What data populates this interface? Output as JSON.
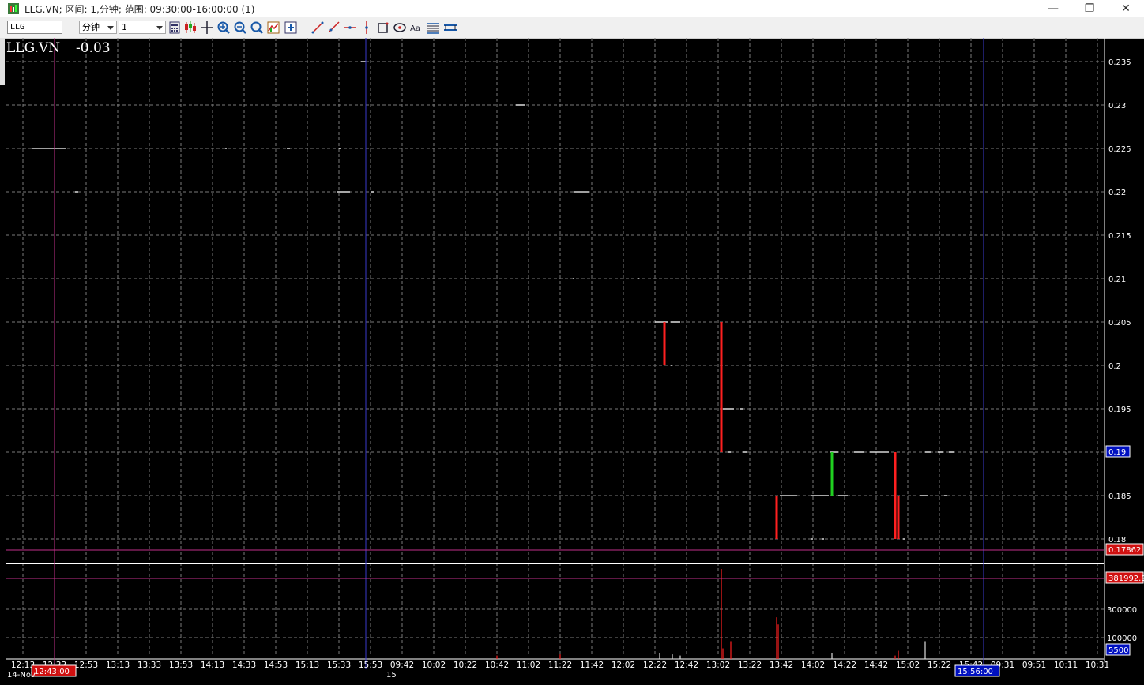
{
  "window": {
    "title": "LLG.VN; 区间: 1,分钟; 范围: 09:30:00-16:00:00 (1)",
    "minimize": "—",
    "restore": "❐",
    "close": "✕"
  },
  "toolbar": {
    "symbol_value": "LLG",
    "period_unit": "分钟",
    "period_value": "1",
    "tools": [
      "calculator-icon",
      "candlestick-icon",
      "crosshair-icon",
      "zoom-in-icon",
      "zoom-out-icon",
      "zoom-icon",
      "indicator-icon",
      "add-icon",
      "trendline-icon",
      "ray-icon",
      "horizontal-line-icon",
      "vertical-line-icon",
      "rectangle-icon",
      "ellipse-icon",
      "text-icon",
      "fib-icon",
      "channel-icon"
    ]
  },
  "chart": {
    "symbol": "LLG.VN",
    "change": "-0.03",
    "date_label": "14-Nov",
    "day_label": "15",
    "cursor_time_left": "12:43:00",
    "cursor_time_right": "15:56:00",
    "price_cursor_label": "0.17862",
    "last_price_label": "0.19",
    "volume_cursor_label": "381992.9",
    "last_volume_label": "5500",
    "colors": {
      "up": "#20d020",
      "down": "#ff2020",
      "grid": "#7a7a7a",
      "cursor": "#c0308a",
      "vline": "#3a3acd"
    }
  },
  "chart_data": {
    "type": "candlestick",
    "x_ticks": [
      "12:13",
      "12:33",
      "12:53",
      "13:13",
      "13:33",
      "13:53",
      "14:13",
      "14:33",
      "14:53",
      "15:13",
      "15:33",
      "15:53",
      "09:42",
      "10:02",
      "10:22",
      "10:42",
      "11:02",
      "11:22",
      "11:42",
      "12:02",
      "12:22",
      "12:42",
      "13:02",
      "13:22",
      "13:42",
      "14:02",
      "14:22",
      "14:42",
      "15:02",
      "15:22",
      "15:42",
      "09:31",
      "09:51",
      "10:11",
      "10:31"
    ],
    "y_ticks": [
      "0.235",
      "0.23",
      "0.225",
      "0.22",
      "0.215",
      "0.21",
      "0.205",
      "0.2",
      "0.195",
      "0.19",
      "0.185",
      "0.18"
    ],
    "ylim": [
      0.18,
      0.235
    ],
    "volume_ticks": [
      "300000",
      "100000"
    ],
    "candles": [
      {
        "time": "12:28",
        "open": 0.205,
        "close": 0.2,
        "high": 0.205,
        "low": 0.2
      },
      {
        "time": "13:04",
        "open": 0.205,
        "close": 0.19,
        "high": 0.205,
        "low": 0.19
      },
      {
        "time": "13:39",
        "open": 0.185,
        "close": 0.18,
        "high": 0.185,
        "low": 0.18
      },
      {
        "time": "14:14",
        "open": 0.185,
        "close": 0.19,
        "high": 0.19,
        "low": 0.185
      },
      {
        "time": "14:54",
        "open": 0.19,
        "close": 0.18,
        "high": 0.19,
        "low": 0.18
      },
      {
        "time": "14:56",
        "open": 0.185,
        "close": 0.18,
        "high": 0.185,
        "low": 0.18
      }
    ],
    "dashes": [
      {
        "price": 0.235,
        "from": "15:47",
        "to": "15:50"
      },
      {
        "price": 0.23,
        "from": "10:54",
        "to": "11:00"
      },
      {
        "price": 0.225,
        "from": "12:19",
        "to": "12:40"
      },
      {
        "price": 0.225,
        "from": "14:21",
        "to": "14:22"
      },
      {
        "price": 0.225,
        "from": "15:00",
        "to": "15:02"
      },
      {
        "price": 0.225,
        "from": "15:33",
        "to": "15:34"
      },
      {
        "price": 0.22,
        "from": "12:46",
        "to": "12:48"
      },
      {
        "price": 0.22,
        "from": "15:32",
        "to": "15:40"
      },
      {
        "price": 0.22,
        "from": "15:53",
        "to": "15:55"
      },
      {
        "price": 0.22,
        "from": "11:31",
        "to": "11:40"
      },
      {
        "price": 0.21,
        "from": "11:30",
        "to": "11:31"
      },
      {
        "price": 0.21,
        "from": "12:11",
        "to": "12:12"
      },
      {
        "price": 0.205,
        "from": "12:22",
        "to": "12:30"
      },
      {
        "price": 0.205,
        "from": "12:32",
        "to": "12:38"
      },
      {
        "price": 0.2,
        "from": "12:32",
        "to": "12:40"
      },
      {
        "price": 0.195,
        "from": "13:05",
        "to": "13:12"
      },
      {
        "price": 0.195,
        "from": "13:16",
        "to": "13:18"
      },
      {
        "price": 0.19,
        "from": "13:08",
        "to": "13:10"
      },
      {
        "price": 0.19,
        "from": "13:18",
        "to": "13:20"
      },
      {
        "price": 0.19,
        "from": "14:13",
        "to": "14:18"
      },
      {
        "price": 0.19,
        "from": "14:28",
        "to": "14:34"
      },
      {
        "price": 0.19,
        "from": "14:38",
        "to": "14:50"
      },
      {
        "price": 0.19,
        "from": "15:13",
        "to": "15:17"
      },
      {
        "price": 0.19,
        "from": "15:21",
        "to": "15:24"
      },
      {
        "price": 0.19,
        "from": "15:28",
        "to": "15:31"
      },
      {
        "price": 0.185,
        "from": "13:41",
        "to": "13:52"
      },
      {
        "price": 0.185,
        "from": "14:01",
        "to": "14:06"
      },
      {
        "price": 0.185,
        "from": "14:06",
        "to": "14:12"
      },
      {
        "price": 0.185,
        "from": "14:18",
        "to": "14:24"
      },
      {
        "price": 0.185,
        "from": "15:10",
        "to": "15:15"
      },
      {
        "price": 0.185,
        "from": "15:25",
        "to": "15:27"
      },
      {
        "price": 0.18,
        "from": "14:01",
        "to": "14:02"
      },
      {
        "price": 0.18,
        "from": "14:08",
        "to": "14:09"
      },
      {
        "price": 0.18,
        "from": "14:59",
        "to": "15:02"
      }
    ],
    "volume_bars": [
      {
        "time": "10:42",
        "volume": 20000,
        "dir": "down"
      },
      {
        "time": "11:22",
        "volume": 25000,
        "dir": "down"
      },
      {
        "time": "12:25",
        "volume": 30000,
        "dir": "up"
      },
      {
        "time": "12:33",
        "volume": 25000,
        "dir": "up"
      },
      {
        "time": "12:38",
        "volume": 20000,
        "dir": "up"
      },
      {
        "time": "13:04",
        "volume": 381992.9,
        "dir": "down"
      },
      {
        "time": "13:05",
        "volume": 50000,
        "dir": "down"
      },
      {
        "time": "13:10",
        "volume": 80000,
        "dir": "down"
      },
      {
        "time": "13:39",
        "volume": 180000,
        "dir": "down"
      },
      {
        "time": "13:40",
        "volume": 150000,
        "dir": "down"
      },
      {
        "time": "14:14",
        "volume": 30000,
        "dir": "up"
      },
      {
        "time": "14:54",
        "volume": 20000,
        "dir": "down"
      },
      {
        "time": "14:56",
        "volume": 40000,
        "dir": "down"
      },
      {
        "time": "15:13",
        "volume": 80000,
        "dir": "up"
      },
      {
        "time": "15:30",
        "volume": 5500,
        "dir": "up"
      }
    ]
  }
}
